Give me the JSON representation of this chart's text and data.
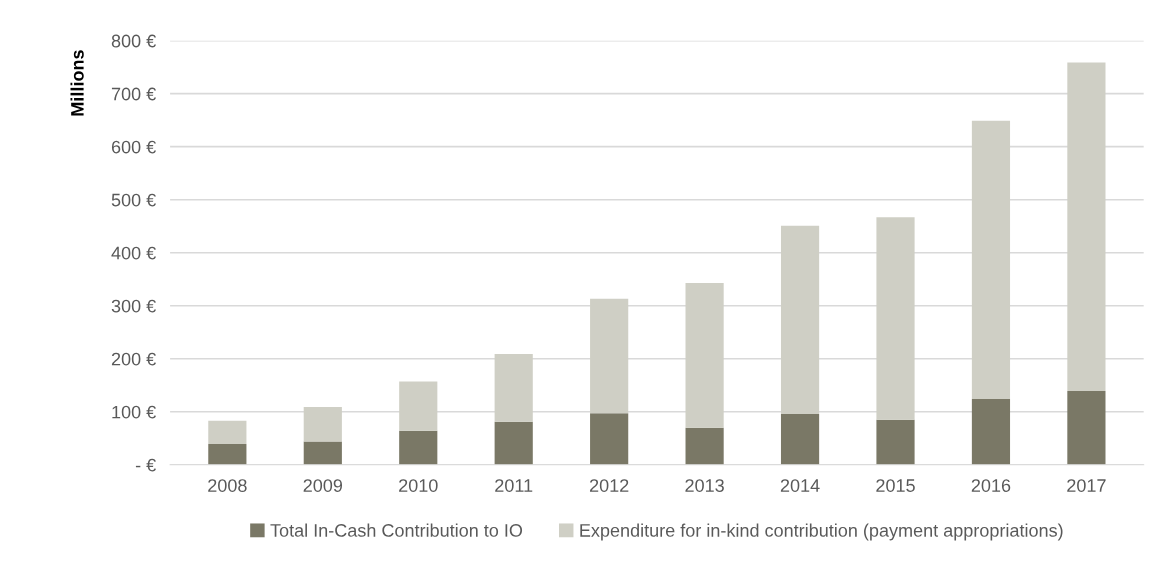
{
  "chart_data": {
    "type": "bar",
    "stacked": true,
    "ylabel": "Millions",
    "categories": [
      "2008",
      "2009",
      "2010",
      "2011",
      "2012",
      "2013",
      "2014",
      "2015",
      "2016",
      "2017"
    ],
    "series": [
      {
        "name": "Total In-Cash Contribution to IO",
        "color": "#7a7866",
        "values": [
          39,
          44,
          64,
          81,
          97,
          70,
          96,
          85,
          124,
          139
        ]
      },
      {
        "name": "Expenditure for in-kind contribution (payment appropriations)",
        "color": "#cfcfc5",
        "values": [
          44,
          65,
          93,
          128,
          216,
          273,
          355,
          382,
          525,
          620
        ]
      }
    ],
    "ylim": [
      0,
      800
    ],
    "yticks": [
      {
        "value": 0,
        "label": "- €"
      },
      {
        "value": 100,
        "label": "100 €"
      },
      {
        "value": 200,
        "label": "200 €"
      },
      {
        "value": 300,
        "label": "300 €"
      },
      {
        "value": 400,
        "label": "400 €"
      },
      {
        "value": 500,
        "label": "500 €"
      },
      {
        "value": 600,
        "label": "600 €"
      },
      {
        "value": 700,
        "label": "700 €"
      },
      {
        "value": 800,
        "label": "800 €"
      }
    ],
    "grid": "y",
    "legend": "bottom"
  }
}
